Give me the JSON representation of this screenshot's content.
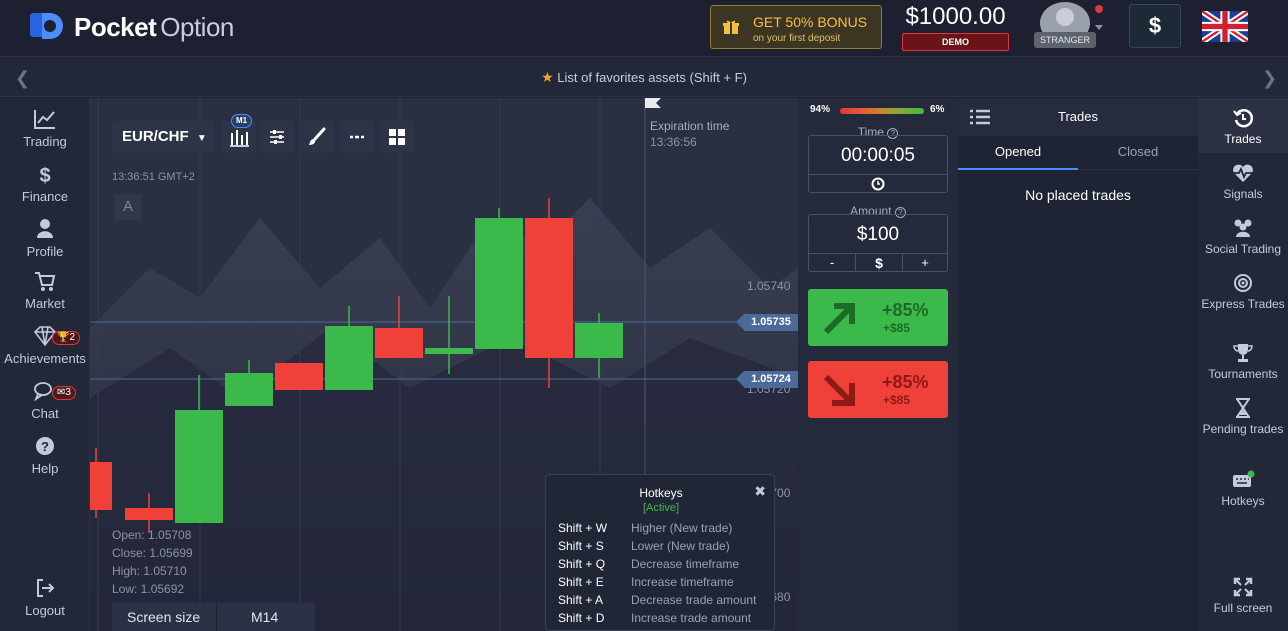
{
  "header": {
    "logo_bold": "Pocket",
    "logo_light": "Option",
    "bonus_title": "GET 50% BONUS",
    "bonus_sub": "on your first deposit",
    "balance": "$1000.00",
    "account_mode": "DEMO",
    "user_label": "STRANGER",
    "deposit_symbol": "$",
    "language": "English (UK)"
  },
  "favorites": {
    "text": "List of favorites assets (Shift + F)"
  },
  "left_nav": [
    {
      "label": "Trading",
      "icon": "chart-line-icon"
    },
    {
      "label": "Finance",
      "icon": "dollar-icon"
    },
    {
      "label": "Profile",
      "icon": "user-icon"
    },
    {
      "label": "Market",
      "icon": "cart-icon"
    },
    {
      "label": "Achievements",
      "icon": "diamond-icon",
      "badge": "2"
    },
    {
      "label": "Chat",
      "icon": "chat-icon",
      "badge": "3"
    },
    {
      "label": "Help",
      "icon": "help-icon"
    },
    {
      "label": "Logout",
      "icon": "logout-icon"
    }
  ],
  "chart": {
    "asset": "EUR/CHF",
    "timeframe": "M1",
    "clock": "13:36:51 GMT+2",
    "drawing_letter": "A",
    "expiration_label": "Expiration time",
    "expiration_time": "13:36:56",
    "price_levels": [
      "1.05740",
      "1.05720",
      "1.05700",
      "1.05680"
    ],
    "price_tag_upper": "1.05735",
    "price_tag_lower": "1.05724",
    "ohlc": {
      "open": "Open: 1.05708",
      "close": "Close: 1.05699",
      "high": "High: 1.05710",
      "low": "Low: 1.05692"
    },
    "screen_size_label": "Screen size",
    "screen_size_value": "M14"
  },
  "hotkeys": {
    "title": "Hotkeys",
    "status": "[Active]",
    "items": [
      {
        "key": "Shift + W",
        "desc": "Higher (New trade)"
      },
      {
        "key": "Shift + S",
        "desc": "Lower (New trade)"
      },
      {
        "key": "Shift + Q",
        "desc": "Decrease timeframe"
      },
      {
        "key": "Shift + E",
        "desc": "Increase timeframe"
      },
      {
        "key": "Shift + A",
        "desc": "Decrease trade amount"
      },
      {
        "key": "Shift + D",
        "desc": "Increase trade amount"
      }
    ]
  },
  "trade": {
    "sentiment_up": "94%",
    "sentiment_down": "6%",
    "time_label": "Time",
    "time_value": "00:00:05",
    "amount_label": "Amount",
    "amount_value": "$100",
    "minus": "-",
    "currency": "$",
    "plus": "+",
    "up_percent": "+85%",
    "up_profit": "+$85",
    "down_percent": "+85%",
    "down_profit": "+$85"
  },
  "trades_panel": {
    "title": "Trades",
    "tab_opened": "Opened",
    "tab_closed": "Closed",
    "empty": "No placed trades"
  },
  "right_nav": [
    {
      "label": "Trades",
      "icon": "history-icon"
    },
    {
      "label": "Signals",
      "icon": "heartbeat-icon"
    },
    {
      "label": "Social Trading",
      "icon": "people-icon"
    },
    {
      "label": "Express Trades",
      "icon": "target-icon"
    },
    {
      "label": "Tournaments",
      "icon": "trophy-icon"
    },
    {
      "label": "Pending trades",
      "icon": "hourglass-icon"
    },
    {
      "label": "Hotkeys",
      "icon": "keyboard-icon"
    },
    {
      "label": "Full screen",
      "icon": "fullscreen-icon"
    }
  ],
  "colors": {
    "up": "#3cb94b",
    "down": "#f0403a",
    "accent": "#f4c043",
    "background": "#1d2130"
  }
}
